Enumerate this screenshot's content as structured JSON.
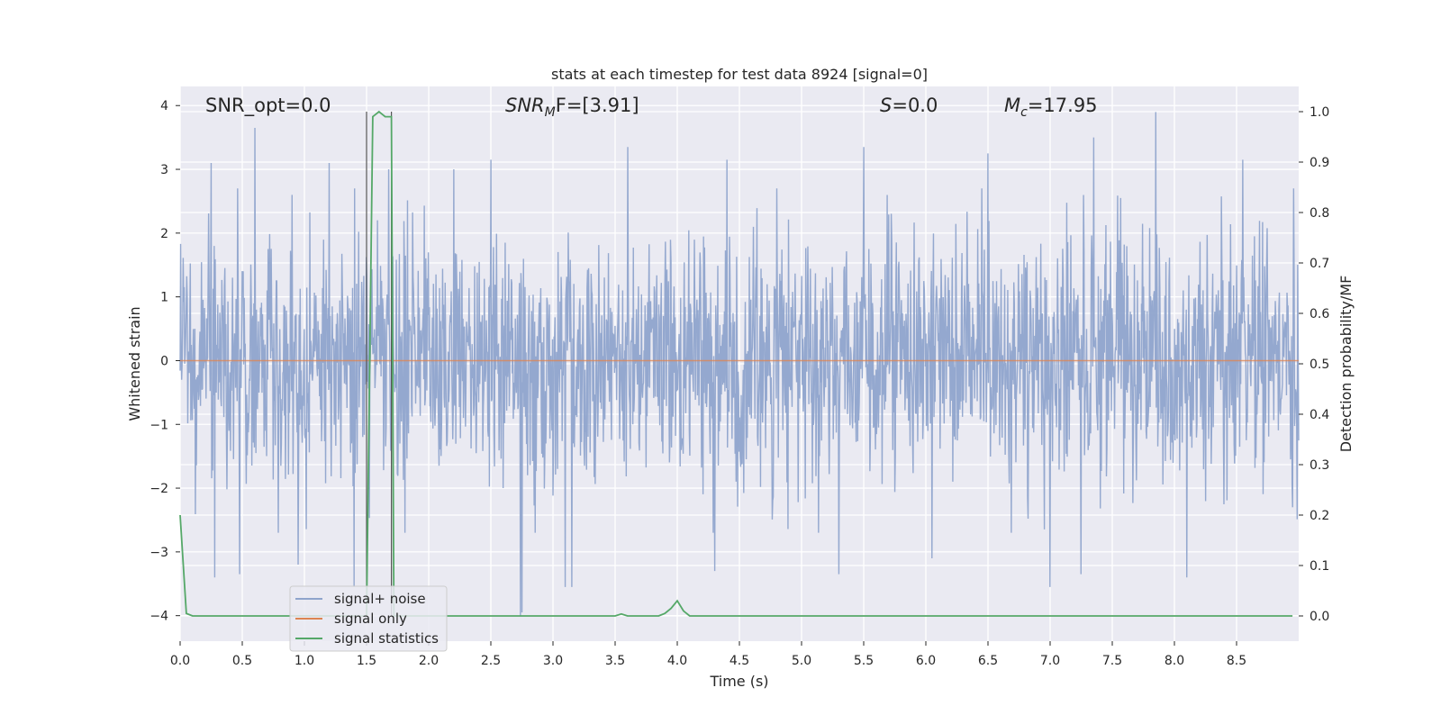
{
  "chart_data": {
    "type": "line",
    "title": "stats at each timestep for test data 8924 [signal=0]",
    "xlabel": "Time (s)",
    "ylabel": "Whitened strain",
    "y2label": "Detection probability/MF",
    "xlim": [
      0.0,
      9.0
    ],
    "ylim": [
      -4.4,
      4.3
    ],
    "y2lim": [
      -0.05,
      1.05
    ],
    "x_ticks": [
      0.0,
      0.5,
      1.0,
      1.5,
      2.0,
      2.5,
      3.0,
      3.5,
      4.0,
      4.5,
      5.0,
      5.5,
      6.0,
      6.5,
      7.0,
      7.5,
      8.0,
      8.5
    ],
    "x_tick_labels": [
      "0.0",
      "0.5",
      "1.0",
      "1.5",
      "2.0",
      "2.5",
      "3.0",
      "3.5",
      "4.0",
      "4.5",
      "5.0",
      "5.5",
      "6.0",
      "6.5",
      "7.0",
      "7.5",
      "8.0",
      "8.5"
    ],
    "y_ticks": [
      4,
      3,
      2,
      1,
      0,
      -1,
      -2,
      -3,
      -4
    ],
    "y_tick_labels": [
      "4",
      "3",
      "2",
      "1",
      "0",
      "−1",
      "−2",
      "−3",
      "−4"
    ],
    "y2_ticks": [
      1.0,
      0.9,
      0.8,
      0.7,
      0.6,
      0.5,
      0.4,
      0.3,
      0.2,
      0.1,
      0.0
    ],
    "y2_tick_labels": [
      "1.0",
      "0.9",
      "0.8",
      "0.7",
      "0.6",
      "0.5",
      "0.4",
      "0.3",
      "0.2",
      "0.1",
      "0.0"
    ],
    "grid": true,
    "legend_position": "lower-left",
    "annotations": [
      {
        "text": "SNR_opt=0.0",
        "italic": false
      },
      {
        "text": "SNR",
        "sub": "M",
        "rest": "F=[3.91]",
        "italic": true
      },
      {
        "text": "S",
        "rest": "=0.0",
        "italic": true
      },
      {
        "text": "M",
        "sub": "c",
        "rest": "=17.95",
        "italic": true
      }
    ],
    "vertical_markers": [
      1.5,
      1.7
    ],
    "series": [
      {
        "name": "signal+ noise",
        "color": "#8fa4cc",
        "kind": "noise",
        "x_range": [
          0.0,
          9.0
        ],
        "band_typical": [
          -1.9,
          2.0
        ],
        "peak_times": [
          0.25,
          0.6,
          0.9,
          1.2,
          1.68,
          2.2,
          2.5,
          2.75,
          3.1,
          3.6,
          4.4,
          5.5,
          6.5,
          7.35,
          7.85,
          8.55
        ],
        "peak_values": [
          3.1,
          3.65,
          2.6,
          3.1,
          3.0,
          3.0,
          3.15,
          -3.95,
          -3.55,
          3.35,
          3.15,
          3.35,
          3.25,
          3.5,
          3.9,
          3.15
        ],
        "trough_times": [
          0.28,
          0.48,
          0.95,
          1.4,
          2.74,
          3.15,
          4.3,
          5.3,
          6.05,
          7.0,
          7.25,
          8.1,
          8.95
        ],
        "trough_values": [
          -3.4,
          -3.35,
          -3.2,
          -3.55,
          -4.0,
          -3.55,
          -3.3,
          -3.35,
          -3.1,
          -3.55,
          -3.35,
          -3.4,
          -2.3
        ]
      },
      {
        "name": "signal only",
        "color": "#dd8452",
        "x": [
          0.0,
          9.0
        ],
        "y": [
          0.0,
          0.0
        ]
      },
      {
        "name": "signal statistics",
        "color": "#55a868",
        "axis": "right",
        "x": [
          0.0,
          0.05,
          0.1,
          0.15,
          0.2,
          1.45,
          1.5,
          1.55,
          1.6,
          1.65,
          1.7,
          1.72,
          1.75,
          1.8,
          3.45,
          3.5,
          3.55,
          3.6,
          3.65,
          3.7,
          3.85,
          3.9,
          3.95,
          4.0,
          4.05,
          4.1,
          4.15,
          4.2,
          8.95
        ],
        "y": [
          0.2,
          0.005,
          0.0,
          0.0,
          0.0,
          0.0,
          0.0,
          0.99,
          1.0,
          0.99,
          0.99,
          0.0,
          0.0,
          0.0,
          0.0,
          0.0,
          0.004,
          0.0,
          0.0,
          0.0,
          0.0,
          0.005,
          0.015,
          0.03,
          0.01,
          0.0,
          0.0,
          0.0,
          0.0
        ]
      }
    ]
  }
}
